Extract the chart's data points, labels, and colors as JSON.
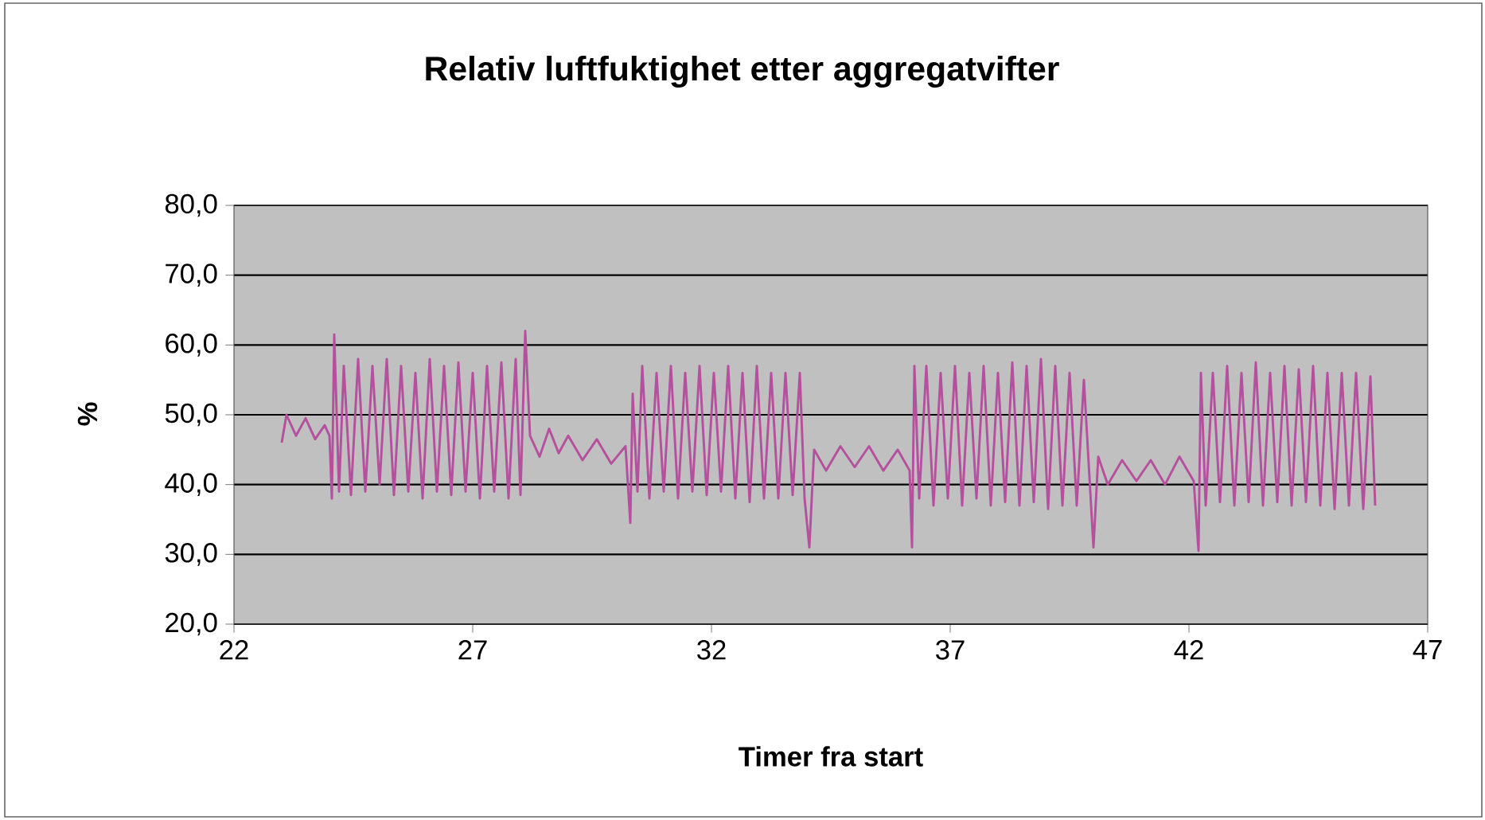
{
  "chart_data": {
    "type": "line",
    "title": "Relativ luftfuktighet etter aggregatvifter",
    "xlabel": "Timer fra start",
    "ylabel": "%",
    "xlim": [
      22,
      47
    ],
    "xticks": [
      22,
      27,
      32,
      37,
      42,
      47
    ],
    "ylim": [
      20,
      80
    ],
    "yticks": [
      {
        "value": 20,
        "label": "20,0"
      },
      {
        "value": 30,
        "label": "30,0"
      },
      {
        "value": 40,
        "label": "40,0"
      },
      {
        "value": 50,
        "label": "50,0"
      },
      {
        "value": 60,
        "label": "60,0"
      },
      {
        "value": 70,
        "label": "70,0"
      },
      {
        "value": 80,
        "label": "80,0"
      }
    ],
    "grid": "y",
    "legend": false,
    "marker": "none",
    "line_style": "solid",
    "series": [
      {
        "color": "#b5509e",
        "x": [
          23.0,
          23.1,
          23.3,
          23.5,
          23.7,
          23.9,
          24.0,
          24.05,
          24.1,
          24.2,
          24.3,
          24.45,
          24.6,
          24.75,
          24.9,
          25.05,
          25.2,
          25.35,
          25.5,
          25.65,
          25.8,
          25.95,
          26.1,
          26.25,
          26.4,
          26.55,
          26.7,
          26.85,
          27.0,
          27.15,
          27.3,
          27.45,
          27.6,
          27.75,
          27.9,
          28.0,
          28.1,
          28.2,
          28.4,
          28.6,
          28.8,
          29.0,
          29.3,
          29.6,
          29.9,
          30.2,
          30.3,
          30.35,
          30.45,
          30.55,
          30.7,
          30.85,
          31.0,
          31.15,
          31.3,
          31.45,
          31.6,
          31.75,
          31.9,
          32.05,
          32.2,
          32.35,
          32.5,
          32.65,
          32.8,
          32.95,
          33.1,
          33.25,
          33.4,
          33.55,
          33.7,
          33.85,
          33.95,
          34.05,
          34.15,
          34.4,
          34.7,
          35.0,
          35.3,
          35.6,
          35.9,
          36.15,
          36.2,
          36.25,
          36.35,
          36.5,
          36.65,
          36.8,
          36.95,
          37.1,
          37.25,
          37.4,
          37.55,
          37.7,
          37.85,
          38.0,
          38.15,
          38.3,
          38.45,
          38.6,
          38.75,
          38.9,
          39.05,
          39.2,
          39.35,
          39.5,
          39.65,
          39.8,
          39.95,
          40.0,
          40.1,
          40.3,
          40.6,
          40.9,
          41.2,
          41.5,
          41.8,
          42.1,
          42.2,
          42.25,
          42.35,
          42.5,
          42.65,
          42.8,
          42.95,
          43.1,
          43.25,
          43.4,
          43.55,
          43.7,
          43.85,
          44.0,
          44.15,
          44.3,
          44.45,
          44.6,
          44.75,
          44.9,
          45.05,
          45.2,
          45.35,
          45.5,
          45.65,
          45.8,
          45.9
        ],
        "values": [
          46,
          50,
          47,
          49.5,
          46.5,
          48.5,
          47,
          38,
          61.5,
          39,
          57,
          38.5,
          58,
          39,
          57,
          40,
          58,
          38.5,
          57,
          39,
          56,
          38,
          58,
          39,
          57,
          38.5,
          57.5,
          39,
          56,
          38,
          57,
          39,
          57.5,
          38,
          58,
          38.5,
          62,
          47,
          44,
          48,
          44.5,
          47,
          43.5,
          46.5,
          43,
          45.5,
          34.5,
          53,
          39,
          57,
          38,
          56,
          39,
          57,
          38,
          56,
          39,
          57,
          38.5,
          56,
          39,
          57,
          38,
          56,
          37.5,
          57,
          38,
          56,
          38,
          56,
          38.5,
          56,
          38,
          31,
          45,
          42,
          45.5,
          42.5,
          45.5,
          42,
          45,
          42,
          31,
          57,
          38,
          57,
          37,
          56,
          38,
          57,
          37,
          56,
          38,
          57,
          37,
          56,
          37.5,
          57.5,
          37,
          57,
          37.5,
          58,
          36.5,
          57,
          37,
          56,
          37,
          55,
          37,
          31,
          44,
          40,
          43.5,
          40.5,
          43.5,
          40,
          44,
          40.5,
          30.5,
          56,
          37,
          56,
          37.5,
          57,
          37,
          56,
          37.5,
          57.5,
          37,
          56,
          37.5,
          57,
          37,
          56.5,
          37.5,
          57,
          37,
          56,
          36.5,
          56,
          37,
          56,
          36.5,
          55.5,
          37
        ]
      }
    ]
  }
}
